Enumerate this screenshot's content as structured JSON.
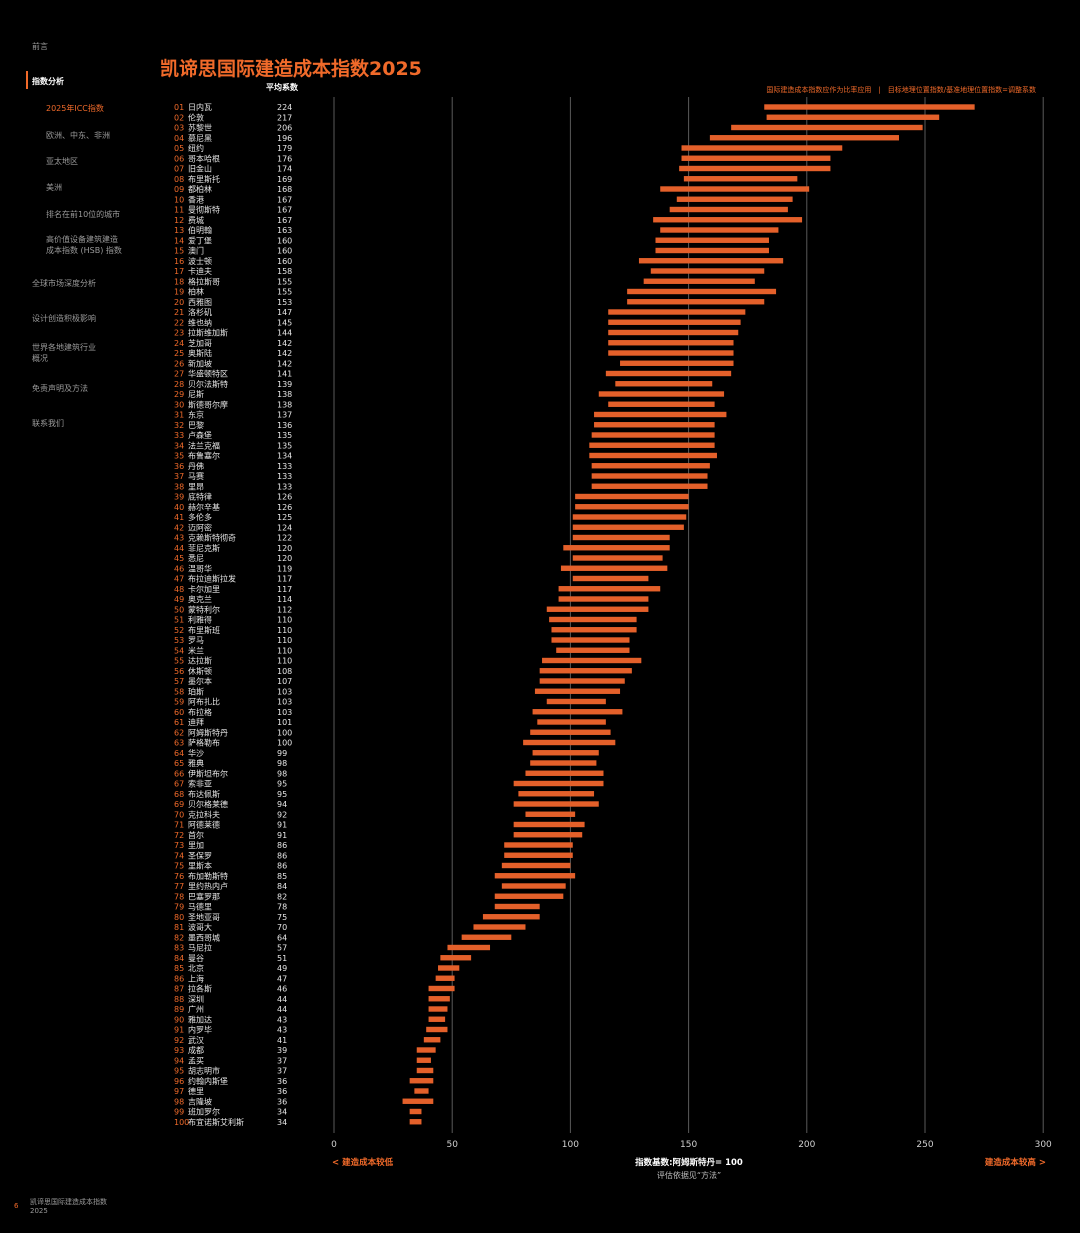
{
  "sidebar": {
    "items": [
      {
        "label": "前言"
      },
      {
        "label": "指数分析"
      },
      {
        "label": "2025年ICC指数"
      },
      {
        "label": "欧洲、中东、非洲"
      },
      {
        "label": "亚太地区"
      },
      {
        "label": "美洲"
      },
      {
        "label": "排名在前10位的城市"
      },
      {
        "label": "高价值设备建筑建造\n成本指数 (HSB) 指数"
      },
      {
        "label": "全球市场深度分析"
      },
      {
        "label": "设计创造积极影响"
      },
      {
        "label": "世界各地建筑行业\n概况"
      },
      {
        "label": "免责声明及方法"
      },
      {
        "label": "联系我们"
      }
    ]
  },
  "title": "凯谛思国际建造成本指数2025",
  "column_header": "平均系数",
  "legend_text": "国际建造成本指数应作为比率应用　|　目标地理位置指数/基准地理位置指数=调整系数",
  "footer": {
    "page": "6",
    "text": "凯谛思国际建造成本指数\n2025"
  },
  "colors": {
    "accent": "#f06a2a",
    "bar": "#e4602a",
    "grid": "#5a5a5a",
    "background": "#000000"
  },
  "chart_data": {
    "type": "bar",
    "orientation": "horizontal",
    "ranks": [
      "01",
      "02",
      "03",
      "04",
      "05",
      "06",
      "07",
      "08",
      "09",
      "10",
      "11",
      "12",
      "13",
      "14",
      "15",
      "16",
      "17",
      "18",
      "19",
      "20",
      "21",
      "22",
      "23",
      "24",
      "25",
      "26",
      "27",
      "28",
      "29",
      "30",
      "31",
      "32",
      "33",
      "34",
      "35",
      "36",
      "37",
      "38",
      "39",
      "40",
      "41",
      "42",
      "43",
      "44",
      "45",
      "46",
      "47",
      "48",
      "49",
      "50",
      "51",
      "52",
      "53",
      "54",
      "55",
      "56",
      "57",
      "58",
      "59",
      "60",
      "61",
      "62",
      "63",
      "64",
      "65",
      "66",
      "67",
      "68",
      "69",
      "70",
      "71",
      "72",
      "73",
      "74",
      "75",
      "76",
      "77",
      "78",
      "79",
      "80",
      "81",
      "82",
      "83",
      "84",
      "85",
      "86",
      "87",
      "88",
      "89",
      "90",
      "91",
      "92",
      "93",
      "94",
      "95",
      "96",
      "97",
      "98",
      "99",
      "100"
    ],
    "cities": [
      "日内瓦",
      "伦敦",
      "苏黎世",
      "慕尼黑",
      "纽约",
      "哥本哈根",
      "旧金山",
      "布里斯托",
      "都柏林",
      "香港",
      "曼彻斯特",
      "费城",
      "伯明翰",
      "爱丁堡",
      "澳门",
      "波士顿",
      "卡迪夫",
      "格拉斯哥",
      "柏林",
      "西雅图",
      "洛杉矶",
      "维也纳",
      "拉斯维加斯",
      "芝加哥",
      "奥斯陆",
      "新加坡",
      "华盛顿特区",
      "贝尔法斯特",
      "尼斯",
      "斯德哥尔摩",
      "东京",
      "巴黎",
      "卢森堡",
      "法兰克福",
      "布鲁塞尔",
      "丹佛",
      "马赛",
      "里昂",
      "底特律",
      "赫尔辛基",
      "多伦多",
      "迈阿密",
      "克赖斯特彻奇",
      "菲尼克斯",
      "悉尼",
      "温哥华",
      "布拉迪斯拉发",
      "卡尔加里",
      "奥克兰",
      "蒙特利尔",
      "利雅得",
      "布里斯班",
      "罗马",
      "米兰",
      "达拉斯",
      "休斯顿",
      "墨尔本",
      "珀斯",
      "阿布扎比",
      "布拉格",
      "迪拜",
      "阿姆斯特丹",
      "萨格勒布",
      "华沙",
      "雅典",
      "伊斯坦布尔",
      "索非亚",
      "布达佩斯",
      "贝尔格莱德",
      "克拉科夫",
      "阿德莱德",
      "首尔",
      "里加",
      "圣保罗",
      "里斯本",
      "布加勒斯特",
      "里约热内卢",
      "巴塞罗那",
      "马德里",
      "圣地亚哥",
      "波哥大",
      "墨西哥城",
      "马尼拉",
      "曼谷",
      "北京",
      "上海",
      "拉各斯",
      "深圳",
      "广州",
      "雅加达",
      "内罗毕",
      "武汉",
      "成都",
      "孟买",
      "胡志明市",
      "约翰内斯堡",
      "德里",
      "吉隆坡",
      "班加罗尔",
      "布宜诺斯艾利斯"
    ],
    "values": [
      224,
      217,
      206,
      196,
      179,
      176,
      174,
      169,
      168,
      167,
      167,
      167,
      163,
      160,
      160,
      160,
      158,
      155,
      155,
      153,
      147,
      145,
      144,
      142,
      142,
      142,
      141,
      139,
      138,
      138,
      137,
      136,
      135,
      135,
      134,
      133,
      133,
      133,
      126,
      126,
      125,
      124,
      122,
      120,
      120,
      119,
      117,
      117,
      114,
      112,
      110,
      110,
      110,
      110,
      110,
      108,
      107,
      103,
      103,
      103,
      101,
      100,
      100,
      99,
      98,
      98,
      95,
      95,
      94,
      92,
      91,
      91,
      86,
      86,
      86,
      85,
      84,
      82,
      78,
      75,
      70,
      64,
      57,
      51,
      49,
      47,
      46,
      44,
      44,
      43,
      43,
      41,
      39,
      37,
      37,
      36,
      36,
      36,
      34,
      34
    ],
    "bar_ranges": [
      [
        182,
        271
      ],
      [
        183,
        256
      ],
      [
        168,
        249
      ],
      [
        159,
        239
      ],
      [
        147,
        215
      ],
      [
        147,
        210
      ],
      [
        146,
        210
      ],
      [
        148,
        196
      ],
      [
        138,
        201
      ],
      [
        145,
        194
      ],
      [
        142,
        192
      ],
      [
        135,
        198
      ],
      [
        138,
        188
      ],
      [
        136,
        184
      ],
      [
        136,
        184
      ],
      [
        129,
        190
      ],
      [
        134,
        182
      ],
      [
        131,
        178
      ],
      [
        124,
        187
      ],
      [
        124,
        182
      ],
      [
        116,
        174
      ],
      [
        116,
        172
      ],
      [
        116,
        171
      ],
      [
        116,
        169
      ],
      [
        116,
        169
      ],
      [
        121,
        169
      ],
      [
        115,
        168
      ],
      [
        119,
        160
      ],
      [
        112,
        165
      ],
      [
        116,
        161
      ],
      [
        110,
        166
      ],
      [
        110,
        161
      ],
      [
        109,
        161
      ],
      [
        108,
        161
      ],
      [
        108,
        162
      ],
      [
        109,
        159
      ],
      [
        109,
        158
      ],
      [
        109,
        158
      ],
      [
        102,
        150
      ],
      [
        102,
        150
      ],
      [
        101,
        149
      ],
      [
        101,
        148
      ],
      [
        101,
        142
      ],
      [
        97,
        142
      ],
      [
        101,
        139
      ],
      [
        96,
        141
      ],
      [
        101,
        133
      ],
      [
        95,
        138
      ],
      [
        95,
        133
      ],
      [
        90,
        133
      ],
      [
        91,
        128
      ],
      [
        92,
        128
      ],
      [
        92,
        125
      ],
      [
        94,
        125
      ],
      [
        88,
        130
      ],
      [
        87,
        126
      ],
      [
        87,
        123
      ],
      [
        85,
        121
      ],
      [
        90,
        115
      ],
      [
        84,
        122
      ],
      [
        86,
        115
      ],
      [
        83,
        117
      ],
      [
        80,
        119
      ],
      [
        84,
        112
      ],
      [
        83,
        111
      ],
      [
        81,
        114
      ],
      [
        76,
        114
      ],
      [
        78,
        110
      ],
      [
        76,
        112
      ],
      [
        81,
        102
      ],
      [
        76,
        106
      ],
      [
        76,
        105
      ],
      [
        72,
        101
      ],
      [
        72,
        101
      ],
      [
        71,
        100
      ],
      [
        68,
        102
      ],
      [
        71,
        98
      ],
      [
        68,
        97
      ],
      [
        68,
        87
      ],
      [
        63,
        87
      ],
      [
        59,
        81
      ],
      [
        54,
        75
      ],
      [
        48,
        66
      ],
      [
        45,
        58
      ],
      [
        44,
        53
      ],
      [
        43,
        51
      ],
      [
        40,
        51
      ],
      [
        40,
        49
      ],
      [
        40,
        48
      ],
      [
        40,
        47
      ],
      [
        39,
        48
      ],
      [
        38,
        45
      ],
      [
        35,
        43
      ],
      [
        35,
        41
      ],
      [
        35,
        42
      ],
      [
        32,
        42
      ],
      [
        34,
        40
      ],
      [
        29,
        42
      ],
      [
        32,
        37
      ],
      [
        32,
        37
      ]
    ],
    "xlim": [
      0,
      300
    ],
    "xticks": [
      0,
      50,
      100,
      150,
      200,
      250,
      300
    ],
    "x_label_center": "指数基数:阿姆斯特丹= 100",
    "x_sublabel": "评估依据见“方法”",
    "x_label_left": "< 建造成本较低",
    "x_label_right": "建造成本较高 >",
    "grid": true
  }
}
